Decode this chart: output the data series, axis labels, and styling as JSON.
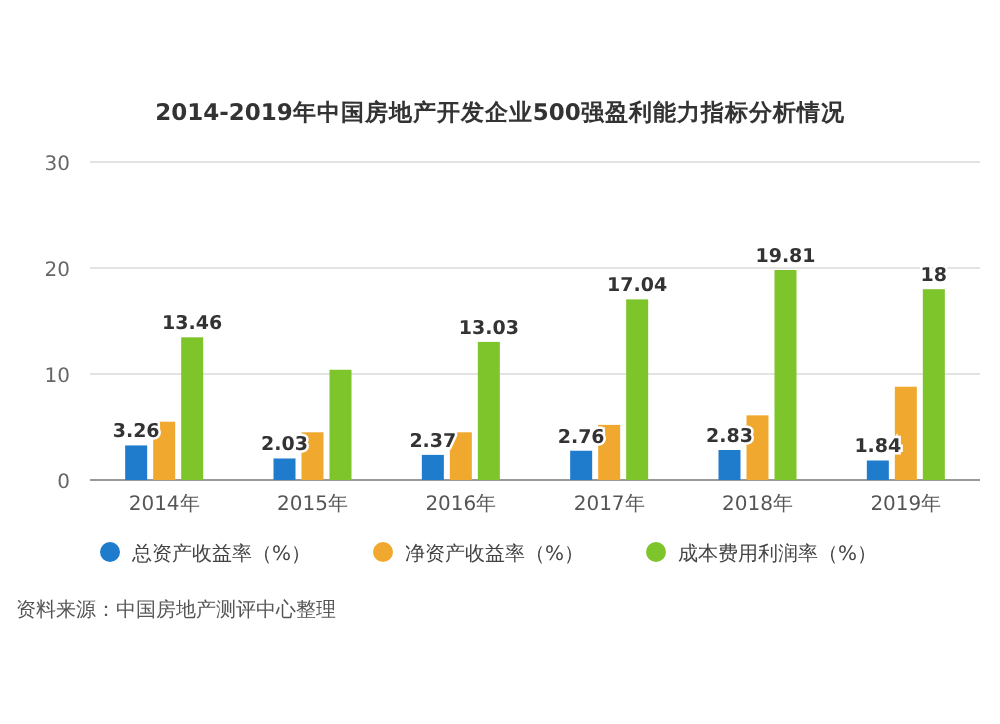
{
  "chart_data": {
    "type": "bar",
    "title": "2014-2019年中国房地产开发企业500强盈利能力指标分析情况",
    "categories": [
      "2014年",
      "2015年",
      "2016年",
      "2017年",
      "2018年",
      "2019年"
    ],
    "series": [
      {
        "name": "总资产收益率（%）",
        "color": "#1f7bcc",
        "values": [
          3.26,
          2.03,
          2.37,
          2.76,
          2.83,
          1.84
        ],
        "value_labels": [
          "3.26",
          "2.03",
          "2.37",
          "2.76",
          "2.83",
          "1.84"
        ]
      },
      {
        "name": "净资产收益率（%）",
        "color": "#f0a92e",
        "values": [
          5.5,
          4.5,
          4.5,
          5.2,
          6.1,
          8.8
        ]
      },
      {
        "name": "成本费用利润率（%）",
        "color": "#7dc52b",
        "values": [
          13.46,
          10.4,
          13.03,
          17.04,
          19.81,
          18
        ],
        "value_labels": [
          "13.46",
          null,
          "13.03",
          "17.04",
          "19.81",
          "18"
        ]
      }
    ],
    "ylim": [
      0,
      30
    ],
    "yticks": [
      0,
      10,
      20,
      30
    ],
    "grid": "y",
    "legend": "bottom",
    "annotations": [
      "资料来源：中国房地产测评中心整理"
    ]
  }
}
